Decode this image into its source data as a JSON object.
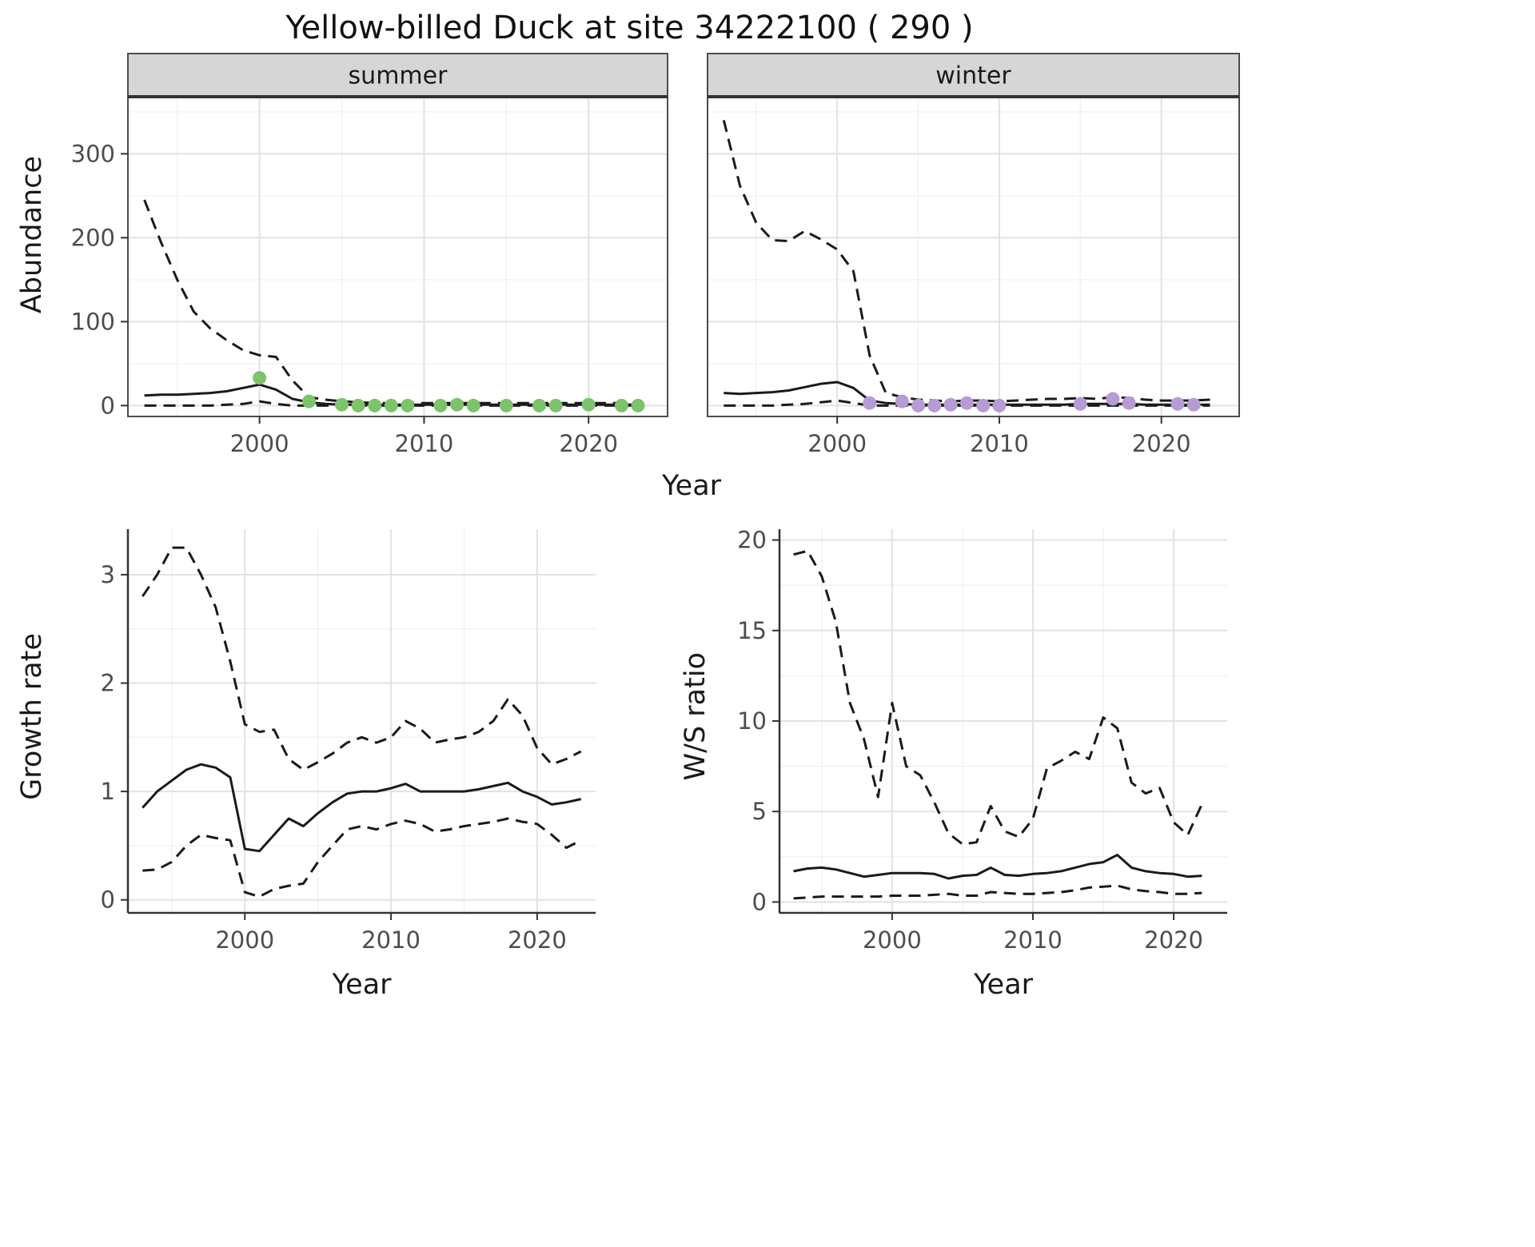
{
  "title": "Yellow-billed Duck at site 34222100 ( 290 )",
  "colors": {
    "summer": "#7dc36b",
    "winter": "#b79bd4",
    "line": "#1a1a1a",
    "strip_bg": "#d6d6d6",
    "strip_border": "#4d4d4d",
    "strip_underline": "#333333",
    "panel_border": "#4d4d4d",
    "axis_line": "#333333",
    "grid_major": "#e2e2e2",
    "grid_minor": "#f2f2f2",
    "tick_label": "#4d4d4d",
    "tick_mark": "#333333"
  },
  "chart_data": [
    {
      "id": "abundance-summer",
      "type": "line",
      "facet_label": "summer",
      "ylabel": "Abundance",
      "xlabel": "Year",
      "xlim": [
        1992,
        2024.8
      ],
      "ylim": [
        -13,
        368
      ],
      "xticks": [
        2000,
        2010,
        2020
      ],
      "yticks": [
        0,
        100,
        200,
        300
      ],
      "xticks_minor": [
        1995,
        2005,
        2015
      ],
      "yticks_minor": [
        50,
        150,
        250,
        350
      ],
      "x": [
        1993,
        1994,
        1995,
        1996,
        1997,
        1998,
        1999,
        2000,
        2001,
        2002,
        2003,
        2004,
        2005,
        2006,
        2007,
        2008,
        2009,
        2010,
        2011,
        2012,
        2013,
        2014,
        2015,
        2016,
        2017,
        2018,
        2019,
        2020,
        2021,
        2022,
        2023
      ],
      "series": [
        {
          "name": "upper",
          "style": "dashed",
          "values": [
            245,
            195,
            150,
            112,
            92,
            78,
            66,
            60,
            58,
            30,
            10,
            7,
            5,
            4,
            3,
            3,
            3,
            3,
            3,
            3,
            3,
            3,
            3,
            3,
            3,
            3,
            3,
            3,
            3,
            3,
            3
          ]
        },
        {
          "name": "median",
          "style": "solid",
          "values": [
            12,
            13,
            13,
            14,
            15,
            17,
            21,
            25,
            19,
            8,
            4,
            2,
            1,
            1,
            1,
            1,
            1,
            1,
            1,
            1,
            1,
            1,
            1,
            1,
            1,
            1,
            1,
            1,
            1,
            1,
            1
          ]
        },
        {
          "name": "lower",
          "style": "dashed",
          "values": [
            0,
            0,
            0,
            0,
            0,
            1,
            2,
            5,
            2,
            0,
            0,
            0,
            0,
            0,
            0,
            0,
            0,
            0,
            0,
            0,
            0,
            0,
            0,
            0,
            0,
            0,
            0,
            0,
            0,
            0,
            0
          ]
        }
      ],
      "points": {
        "name": "observations",
        "color_key": "summer",
        "x": [
          2000,
          2003,
          2005,
          2006,
          2007,
          2008,
          2009,
          2011,
          2012,
          2013,
          2015,
          2017,
          2018,
          2020,
          2022,
          2023
        ],
        "y": [
          33,
          5,
          1,
          0,
          0,
          0,
          0,
          0,
          1,
          0,
          0,
          0,
          0,
          1,
          0,
          0
        ]
      }
    },
    {
      "id": "abundance-winter",
      "type": "line",
      "facet_label": "winter",
      "ylabel": "Abundance",
      "xlabel": "Year",
      "xlim": [
        1992,
        2024.8
      ],
      "ylim": [
        -13,
        368
      ],
      "xticks": [
        2000,
        2010,
        2020
      ],
      "yticks": [
        0,
        100,
        200,
        300
      ],
      "xticks_minor": [
        1995,
        2005,
        2015
      ],
      "yticks_minor": [
        50,
        150,
        250,
        350
      ],
      "x": [
        1993,
        1994,
        1995,
        1996,
        1997,
        1998,
        1999,
        2000,
        2001,
        2002,
        2003,
        2004,
        2005,
        2006,
        2007,
        2008,
        2009,
        2010,
        2011,
        2012,
        2013,
        2014,
        2015,
        2016,
        2017,
        2018,
        2019,
        2020,
        2021,
        2022,
        2023
      ],
      "series": [
        {
          "name": "upper",
          "style": "dashed",
          "values": [
            340,
            262,
            218,
            197,
            196,
            208,
            198,
            186,
            160,
            60,
            15,
            10,
            7,
            6,
            5,
            6,
            6,
            5,
            6,
            7,
            8,
            8,
            9,
            8,
            10,
            9,
            7,
            6,
            6,
            6,
            7
          ]
        },
        {
          "name": "median",
          "style": "solid",
          "values": [
            15,
            14,
            15,
            16,
            18,
            22,
            26,
            28,
            21,
            6,
            3,
            2,
            1,
            1,
            1,
            1,
            1,
            1,
            1,
            1,
            1,
            1,
            2,
            2,
            2,
            2,
            1,
            1,
            1,
            1,
            1
          ]
        },
        {
          "name": "lower",
          "style": "dashed",
          "values": [
            0,
            0,
            0,
            0,
            1,
            2,
            4,
            6,
            3,
            0,
            0,
            0,
            0,
            0,
            0,
            0,
            0,
            0,
            0,
            0,
            0,
            0,
            0,
            0,
            0,
            0,
            0,
            0,
            0,
            0,
            0
          ]
        }
      ],
      "points": {
        "name": "observations",
        "color_key": "winter",
        "x": [
          2002,
          2004,
          2005,
          2006,
          2007,
          2008,
          2009,
          2010,
          2015,
          2017,
          2018,
          2021,
          2022
        ],
        "y": [
          3,
          5,
          0,
          0,
          1,
          3,
          0,
          0,
          2,
          8,
          3,
          2,
          1
        ]
      }
    },
    {
      "id": "growth-rate",
      "type": "line",
      "ylabel": "Growth rate",
      "xlabel": "Year",
      "xlim": [
        1992,
        2024
      ],
      "ylim": [
        -0.12,
        3.42
      ],
      "xticks": [
        2000,
        2010,
        2020
      ],
      "yticks": [
        0,
        1,
        2,
        3
      ],
      "xticks_minor": [
        1995,
        2005,
        2015
      ],
      "yticks_minor": [
        0.5,
        1.5,
        2.5
      ],
      "x": [
        1993,
        1994,
        1995,
        1996,
        1997,
        1998,
        1999,
        2000,
        2001,
        2002,
        2003,
        2004,
        2005,
        2006,
        2007,
        2008,
        2009,
        2010,
        2011,
        2012,
        2013,
        2014,
        2015,
        2016,
        2017,
        2018,
        2019,
        2020,
        2021,
        2022,
        2023
      ],
      "series": [
        {
          "name": "upper",
          "style": "dashed",
          "values": [
            2.8,
            3.0,
            3.25,
            3.25,
            3.0,
            2.7,
            2.2,
            1.62,
            1.55,
            1.57,
            1.3,
            1.2,
            1.27,
            1.35,
            1.45,
            1.5,
            1.45,
            1.5,
            1.65,
            1.58,
            1.45,
            1.48,
            1.5,
            1.55,
            1.65,
            1.85,
            1.7,
            1.4,
            1.25,
            1.3,
            1.37
          ]
        },
        {
          "name": "median",
          "style": "solid",
          "values": [
            0.85,
            1.0,
            1.1,
            1.2,
            1.25,
            1.22,
            1.13,
            0.47,
            0.45,
            0.6,
            0.75,
            0.68,
            0.8,
            0.9,
            0.98,
            1.0,
            1.0,
            1.03,
            1.07,
            1.0,
            1.0,
            1.0,
            1.0,
            1.02,
            1.05,
            1.08,
            1.0,
            0.95,
            0.88,
            0.9,
            0.93
          ]
        },
        {
          "name": "lower",
          "style": "dashed",
          "values": [
            0.27,
            0.28,
            0.35,
            0.5,
            0.6,
            0.57,
            0.55,
            0.07,
            0.03,
            0.1,
            0.13,
            0.15,
            0.35,
            0.5,
            0.65,
            0.68,
            0.65,
            0.7,
            0.73,
            0.7,
            0.63,
            0.65,
            0.68,
            0.7,
            0.72,
            0.75,
            0.72,
            0.7,
            0.6,
            0.48,
            0.55
          ]
        }
      ]
    },
    {
      "id": "ws-ratio",
      "type": "line",
      "ylabel": "W/S ratio",
      "xlabel": "Year",
      "xlim": [
        1992,
        2023.8
      ],
      "ylim": [
        -0.6,
        20.6
      ],
      "xticks": [
        2000,
        2010,
        2020
      ],
      "yticks": [
        0,
        5,
        10,
        15,
        20
      ],
      "xticks_minor": [
        1995,
        2005,
        2015
      ],
      "yticks_minor": [
        2.5,
        7.5,
        12.5,
        17.5
      ],
      "x": [
        1993,
        1994,
        1995,
        1996,
        1997,
        1998,
        1999,
        2000,
        2001,
        2002,
        2003,
        2004,
        2005,
        2006,
        2007,
        2008,
        2009,
        2010,
        2011,
        2012,
        2013,
        2014,
        2015,
        2016,
        2017,
        2018,
        2019,
        2020,
        2021,
        2022
      ],
      "series": [
        {
          "name": "upper",
          "style": "dashed",
          "values": [
            19.2,
            19.4,
            18.0,
            15.5,
            11.0,
            9.0,
            5.8,
            11.0,
            7.5,
            7.0,
            5.5,
            3.8,
            3.2,
            3.3,
            5.3,
            3.9,
            3.6,
            4.6,
            7.4,
            7.8,
            8.3,
            7.9,
            10.2,
            9.6,
            6.6,
            6.0,
            6.3,
            4.4,
            3.7,
            5.4
          ]
        },
        {
          "name": "median",
          "style": "solid",
          "values": [
            1.7,
            1.85,
            1.9,
            1.8,
            1.6,
            1.4,
            1.5,
            1.6,
            1.6,
            1.6,
            1.55,
            1.3,
            1.45,
            1.5,
            1.9,
            1.5,
            1.45,
            1.55,
            1.6,
            1.7,
            1.9,
            2.1,
            2.2,
            2.6,
            1.9,
            1.7,
            1.6,
            1.55,
            1.4,
            1.45
          ]
        },
        {
          "name": "lower",
          "style": "dashed",
          "values": [
            0.2,
            0.25,
            0.3,
            0.3,
            0.3,
            0.3,
            0.3,
            0.35,
            0.35,
            0.35,
            0.4,
            0.45,
            0.35,
            0.35,
            0.55,
            0.5,
            0.45,
            0.45,
            0.5,
            0.55,
            0.65,
            0.8,
            0.85,
            0.9,
            0.7,
            0.6,
            0.55,
            0.45,
            0.45,
            0.5
          ]
        }
      ]
    }
  ]
}
